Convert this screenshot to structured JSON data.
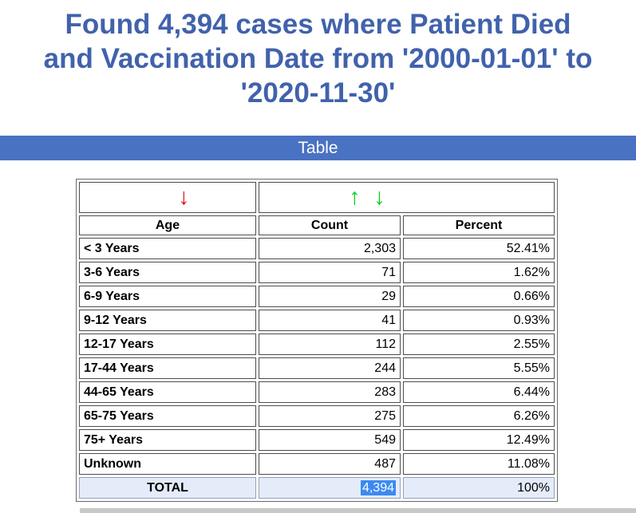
{
  "header": {
    "title_lines": [
      "Found 4,394 cases where Patient Died",
      "and Vaccination Date from '2000-01-01' to",
      "'2020-11-30'"
    ]
  },
  "banner": {
    "label": "Table"
  },
  "table": {
    "sort": {
      "age_desc_arrow": "↓",
      "asc_arrow": "↑",
      "desc_arrow": "↓"
    },
    "columns": [
      "Age",
      "Count",
      "Percent"
    ],
    "rows": [
      {
        "age": "< 3 Years",
        "count": "2,303",
        "percent": "52.41%"
      },
      {
        "age": "3-6 Years",
        "count": "71",
        "percent": "1.62%"
      },
      {
        "age": "6-9 Years",
        "count": "29",
        "percent": "0.66%"
      },
      {
        "age": "9-12 Years",
        "count": "41",
        "percent": "0.93%"
      },
      {
        "age": "12-17 Years",
        "count": "112",
        "percent": "2.55%"
      },
      {
        "age": "17-44 Years",
        "count": "244",
        "percent": "5.55%"
      },
      {
        "age": "44-65 Years",
        "count": "283",
        "percent": "6.44%"
      },
      {
        "age": "65-75 Years",
        "count": "275",
        "percent": "6.26%"
      },
      {
        "age": "75+ Years",
        "count": "549",
        "percent": "12.49%"
      },
      {
        "age": "Unknown",
        "count": "487",
        "percent": "11.08%"
      }
    ],
    "total": {
      "label": "TOTAL",
      "count": "4,394",
      "percent": "100%"
    }
  },
  "colors": {
    "title_text": "#4162ac",
    "banner_bg": "#4a72c2",
    "banner_text": "#ffffff",
    "total_row_bg": "#e4ecfa",
    "selection_bg": "#3c8af0",
    "red_arrow": "#e61414",
    "green_arrow": "#00d21e"
  }
}
